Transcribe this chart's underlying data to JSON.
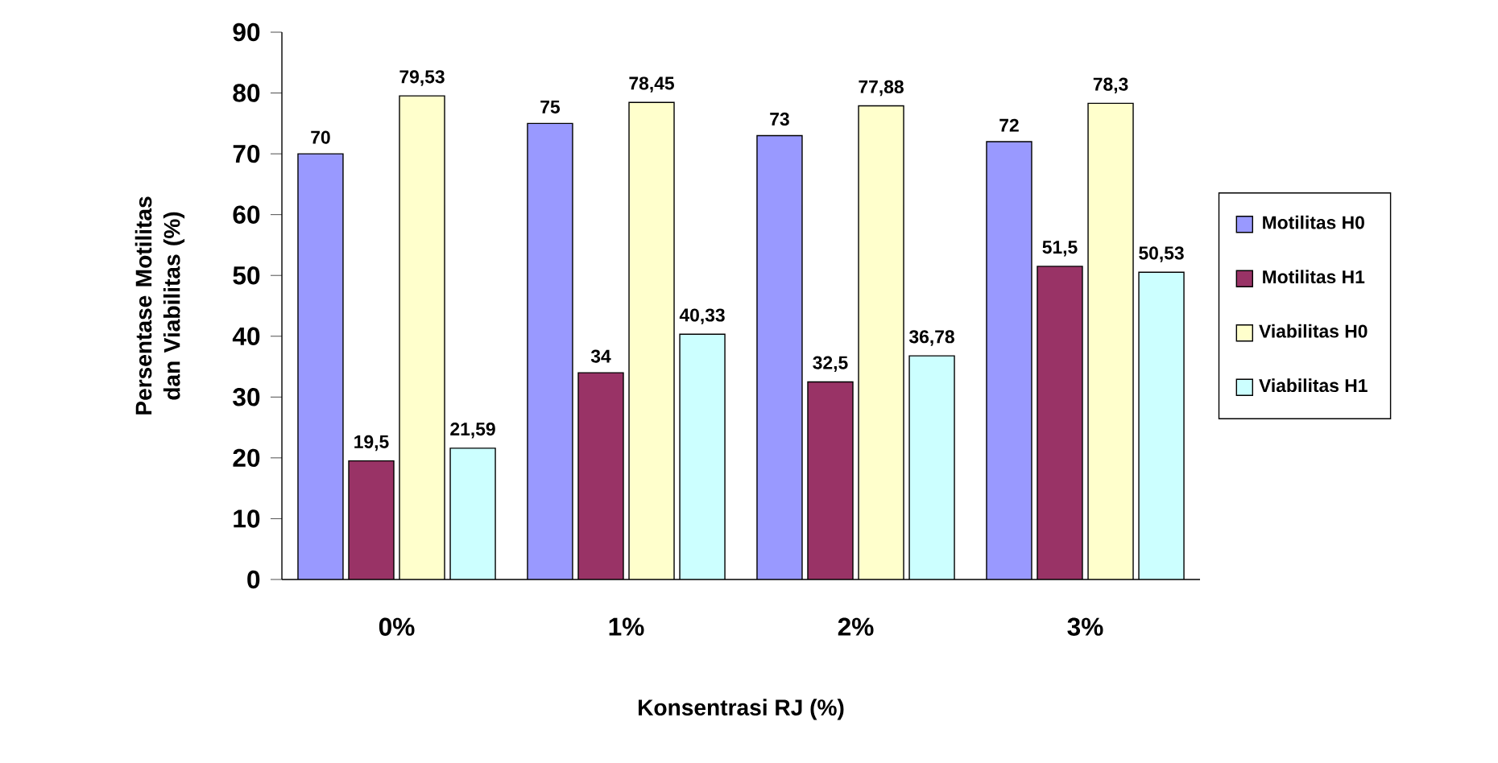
{
  "chart_data": {
    "type": "bar",
    "xlabel": "Konsentrasi RJ (%)",
    "ylabel": "Persentase Motilitas dan Viabilitas (%)",
    "categories": [
      "0%",
      "1%",
      "2%",
      "3%"
    ],
    "series": [
      {
        "name": "Motilitas H0",
        "color": "#9999ff",
        "values": [
          70,
          75,
          73,
          72
        ],
        "value_labels": [
          "70",
          "75",
          "73",
          "72"
        ]
      },
      {
        "name": "Motilitas H1",
        "color": "#993366",
        "values": [
          19.5,
          34,
          32.5,
          51.5
        ],
        "value_labels": [
          "19,5",
          "34",
          "32,5",
          "51,5"
        ]
      },
      {
        "name": "Viabilitas H0",
        "color": "#ffffcc",
        "values": [
          79.53,
          78.45,
          77.88,
          78.3
        ],
        "value_labels": [
          "79,53",
          "78,45",
          "77,88",
          "78,3"
        ]
      },
      {
        "name": "Viabilitas H1",
        "color": "#ccffff",
        "values": [
          21.59,
          40.33,
          36.78,
          50.53
        ],
        "value_labels": [
          "21,59",
          "40,33",
          "36,78",
          "50,53"
        ]
      }
    ],
    "ylim": [
      0,
      90
    ],
    "yticks": [
      0,
      10,
      20,
      30,
      40,
      50,
      60,
      70,
      80,
      90
    ],
    "legend": "right"
  }
}
